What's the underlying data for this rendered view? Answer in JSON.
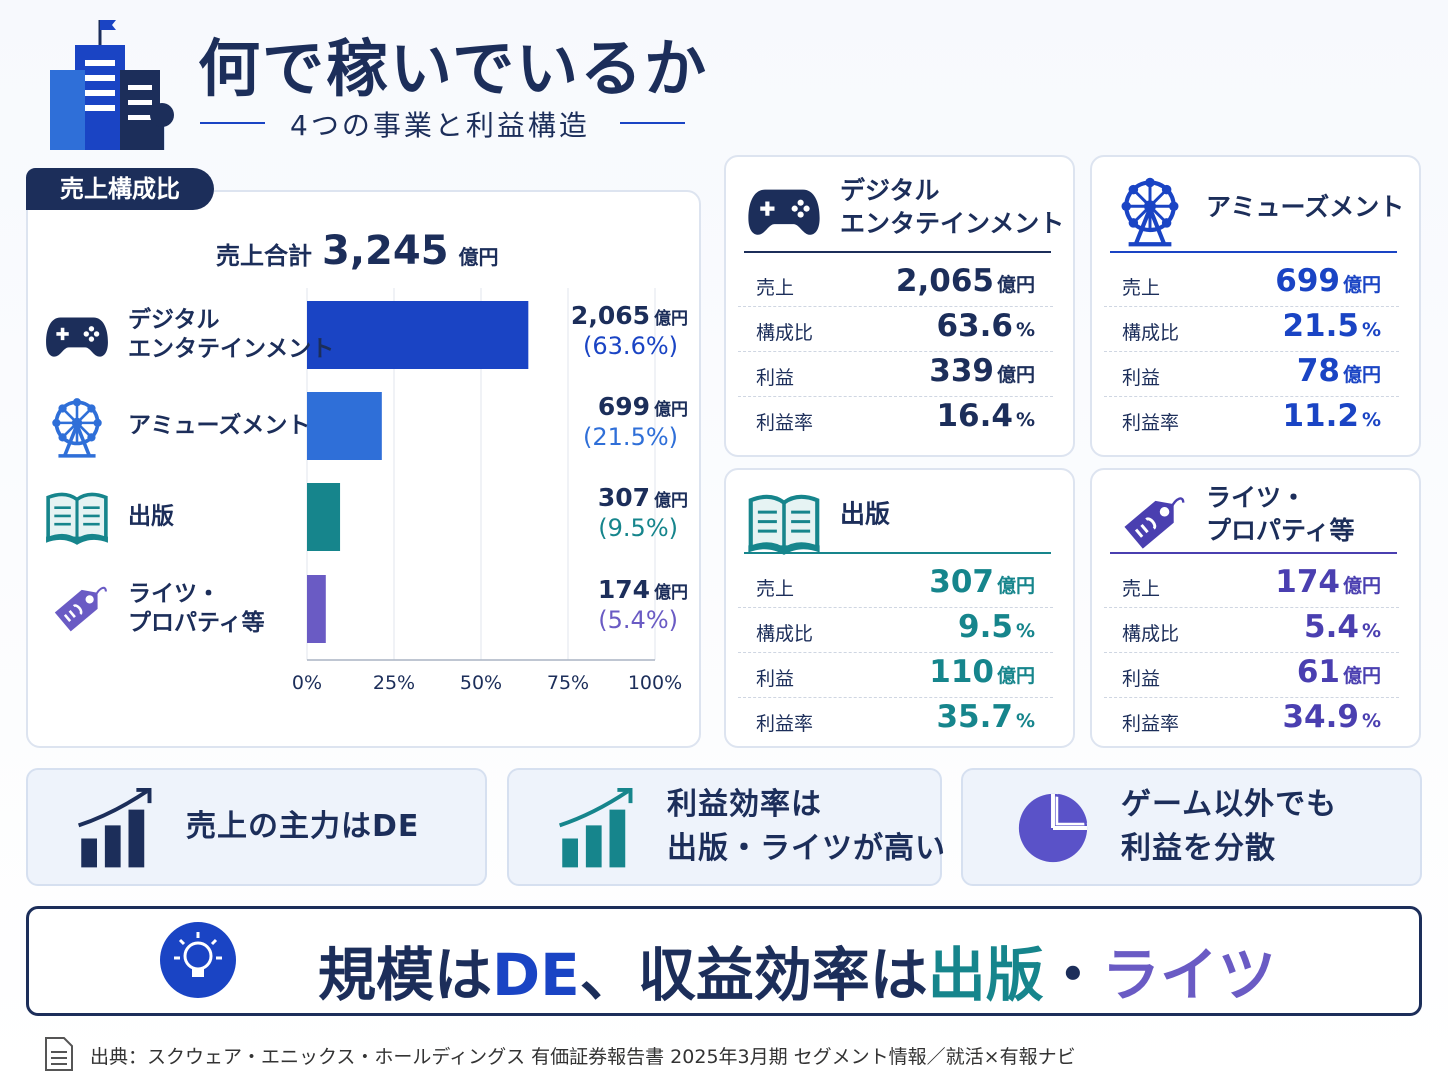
{
  "header": {
    "title": "何で稼いでいるか",
    "subtitle": "4つの事業と利益構造"
  },
  "chart_data": {
    "type": "bar",
    "orientation": "horizontal",
    "section_label": "売上構成比",
    "total_label": "売上合計",
    "total": "3,245",
    "unit": "億円",
    "categories": [
      "デジタル\nエンタテインメント",
      "アミューズメント",
      "出版",
      "ライツ・\nプロパティ等"
    ],
    "values": [
      63.6,
      21.5,
      9.5,
      5.4
    ],
    "value_labels": [
      "(63.6%)",
      "(21.5%)",
      "(9.5%)",
      "(5.4%)"
    ],
    "sales_labels": [
      "2,065",
      "699",
      "307",
      "174"
    ],
    "colors": [
      "#1a44c4",
      "#2f6fd8",
      "#16858c",
      "#6a5bc4"
    ],
    "xlim": [
      0,
      100
    ],
    "xticks": [
      {
        "value": 0,
        "label": "0%"
      },
      {
        "value": 25,
        "label": "25%"
      },
      {
        "value": 50,
        "label": "50%"
      },
      {
        "value": 75,
        "label": "75%"
      },
      {
        "value": 100,
        "label": "100%"
      }
    ],
    "grid": true
  },
  "row_labels": [
    "売上",
    "構成比",
    "利益",
    "利益率"
  ],
  "row_units": [
    "億円",
    "%",
    "億円",
    "%"
  ],
  "segments": [
    {
      "name": "デジタル\nエンタテインメント",
      "color": "#1c2e5a",
      "values": [
        "2,065",
        "63.6",
        "339",
        "16.4"
      ]
    },
    {
      "name": "アミューズメント",
      "color": "#1a44c4",
      "values": [
        "699",
        "21.5",
        "78",
        "11.2"
      ]
    },
    {
      "name": "出版",
      "color": "#16858c",
      "values": [
        "307",
        "9.5",
        "110",
        "35.7"
      ]
    },
    {
      "name": "ライツ・\nプロパティ等",
      "color": "#4a3fb0",
      "values": [
        "174",
        "5.4",
        "61",
        "34.9"
      ]
    }
  ],
  "key_points": [
    "売上の主力はDE",
    "利益効率は\n出版・ライツが高い",
    "ゲーム以外でも\n利益を分散"
  ],
  "conclusion": [
    {
      "text": "規模は",
      "color": "#1c2e5a"
    },
    {
      "text": "DE",
      "color": "#1a44c4"
    },
    {
      "text": "、収益効率は",
      "color": "#1c2e5a"
    },
    {
      "text": "出版",
      "color": "#16858c"
    },
    {
      "text": "・",
      "color": "#1c2e5a"
    },
    {
      "text": "ライツ",
      "color": "#6a5bc4"
    }
  ],
  "source": "出典：スクウェア・エニックス・ホールディングス 有価証券報告書 2025年3月期 セグメント情報／就活×有報ナビ"
}
